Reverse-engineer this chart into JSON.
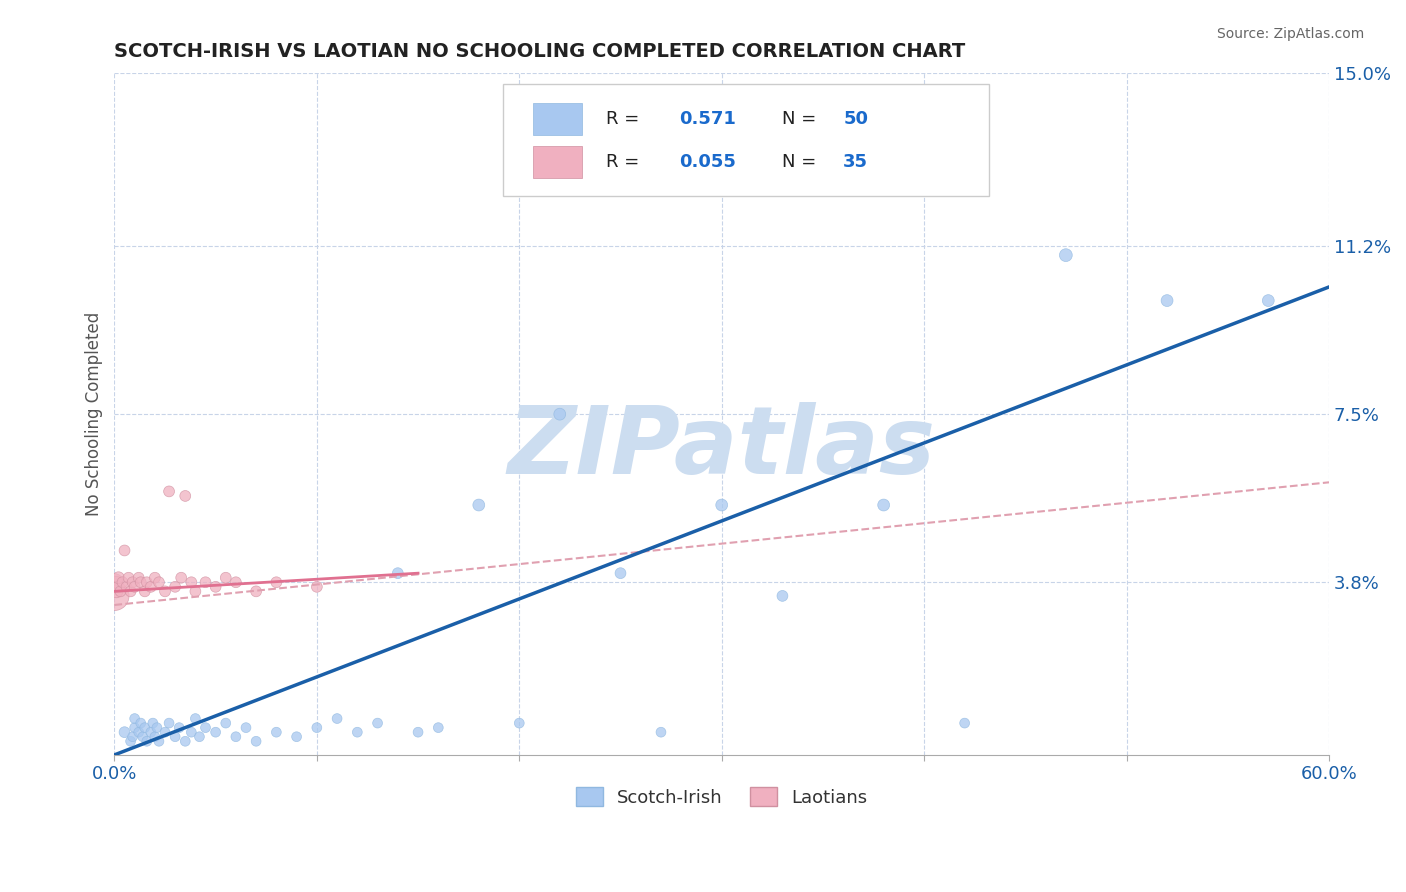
{
  "title": "SCOTCH-IRISH VS LAOTIAN NO SCHOOLING COMPLETED CORRELATION CHART",
  "source_text": "Source: ZipAtlas.com",
  "ylabel": "No Schooling Completed",
  "xlim": [
    0.0,
    0.6
  ],
  "ylim": [
    0.0,
    0.15
  ],
  "ytick_positions": [
    0.0,
    0.038,
    0.075,
    0.112,
    0.15
  ],
  "ytick_labels": [
    "",
    "3.8%",
    "7.5%",
    "11.2%",
    "15.0%"
  ],
  "scotch_irish_R": 0.571,
  "scotch_irish_N": 50,
  "laotian_R": 0.055,
  "laotian_N": 35,
  "scotch_irish_color": "#a8c8f0",
  "laotian_color": "#f0b0c0",
  "trend_scotch_color": "#1a5fa8",
  "trend_laotian_solid_color": "#e07090",
  "trend_laotian_dash_color": "#e0a0b0",
  "background_color": "#ffffff",
  "grid_color": "#c8d4e8",
  "title_fontsize": 14,
  "watermark_text": "ZIPatlas",
  "watermark_color": "#ccddf0",
  "scotch_irish_x": [
    0.005,
    0.008,
    0.009,
    0.01,
    0.01,
    0.012,
    0.013,
    0.014,
    0.015,
    0.016,
    0.018,
    0.019,
    0.02,
    0.021,
    0.022,
    0.025,
    0.027,
    0.03,
    0.032,
    0.035,
    0.038,
    0.04,
    0.042,
    0.045,
    0.05,
    0.055,
    0.06,
    0.065,
    0.07,
    0.08,
    0.09,
    0.1,
    0.11,
    0.12,
    0.13,
    0.14,
    0.15,
    0.16,
    0.18,
    0.2,
    0.22,
    0.25,
    0.27,
    0.3,
    0.33,
    0.38,
    0.42,
    0.47,
    0.52,
    0.57
  ],
  "scotch_irish_y": [
    0.005,
    0.003,
    0.004,
    0.006,
    0.008,
    0.005,
    0.007,
    0.004,
    0.006,
    0.003,
    0.005,
    0.007,
    0.004,
    0.006,
    0.003,
    0.005,
    0.007,
    0.004,
    0.006,
    0.003,
    0.005,
    0.008,
    0.004,
    0.006,
    0.005,
    0.007,
    0.004,
    0.006,
    0.003,
    0.005,
    0.004,
    0.006,
    0.008,
    0.005,
    0.007,
    0.04,
    0.005,
    0.006,
    0.055,
    0.007,
    0.075,
    0.04,
    0.005,
    0.055,
    0.035,
    0.055,
    0.007,
    0.11,
    0.1,
    0.1
  ],
  "scotch_irish_sizes": [
    8,
    7,
    7,
    7,
    7,
    7,
    7,
    7,
    7,
    7,
    7,
    7,
    7,
    7,
    7,
    7,
    7,
    7,
    7,
    7,
    7,
    7,
    7,
    7,
    7,
    7,
    7,
    7,
    7,
    7,
    7,
    7,
    7,
    7,
    7,
    8,
    7,
    7,
    9,
    7,
    9,
    8,
    7,
    9,
    8,
    9,
    7,
    10,
    9,
    9
  ],
  "laotian_x": [
    0.0,
    0.0,
    0.001,
    0.001,
    0.002,
    0.002,
    0.003,
    0.004,
    0.005,
    0.006,
    0.007,
    0.008,
    0.009,
    0.01,
    0.012,
    0.013,
    0.015,
    0.016,
    0.018,
    0.02,
    0.022,
    0.025,
    0.027,
    0.03,
    0.033,
    0.035,
    0.038,
    0.04,
    0.045,
    0.05,
    0.055,
    0.06,
    0.07,
    0.08,
    0.1
  ],
  "laotian_y": [
    0.035,
    0.038,
    0.036,
    0.038,
    0.037,
    0.039,
    0.036,
    0.038,
    0.045,
    0.037,
    0.039,
    0.036,
    0.038,
    0.037,
    0.039,
    0.038,
    0.036,
    0.038,
    0.037,
    0.039,
    0.038,
    0.036,
    0.058,
    0.037,
    0.039,
    0.057,
    0.038,
    0.036,
    0.038,
    0.037,
    0.039,
    0.038,
    0.036,
    0.038,
    0.037
  ],
  "laotian_sizes": [
    30,
    15,
    10,
    9,
    9,
    9,
    8,
    8,
    8,
    8,
    8,
    8,
    8,
    8,
    8,
    8,
    8,
    8,
    8,
    8,
    8,
    8,
    8,
    8,
    8,
    8,
    8,
    8,
    8,
    8,
    8,
    8,
    8,
    8,
    8
  ],
  "laotian_solid_xend": 0.15,
  "legend_R_color": "#1a6acc",
  "legend_N_color": "#1a6acc"
}
